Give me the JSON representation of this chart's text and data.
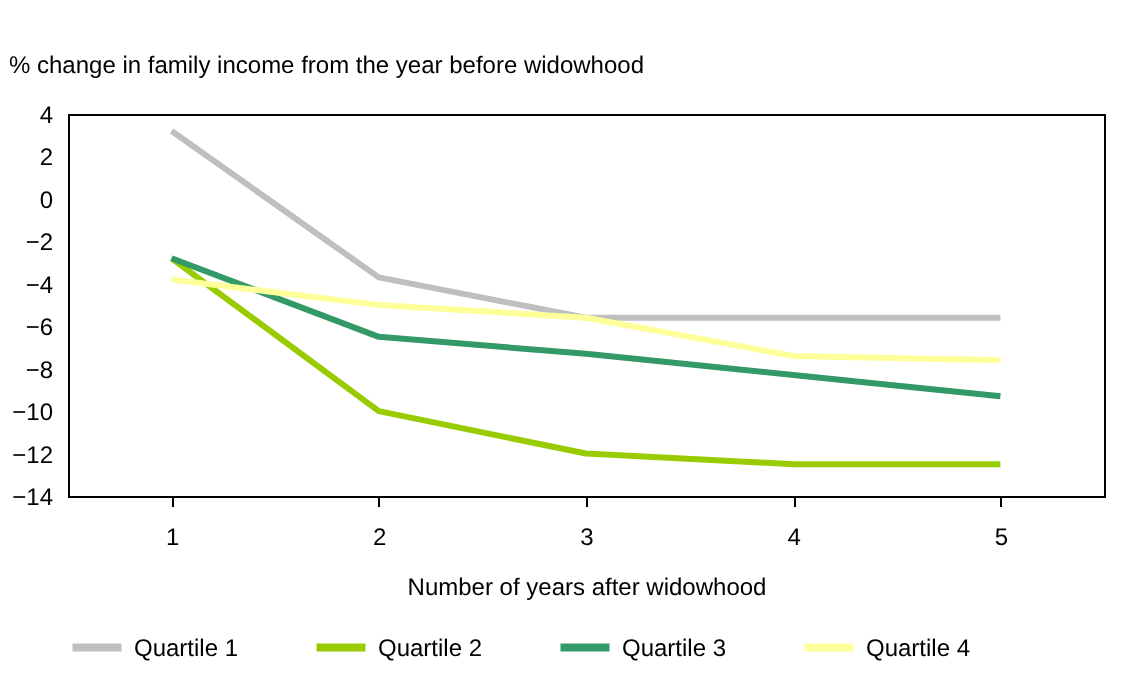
{
  "chart_data": {
    "type": "line",
    "ylabel": "% change in family income from the year before widowhood",
    "xlabel": "Number of years after widowhood",
    "categories": [
      "1",
      "2",
      "3",
      "4",
      "5"
    ],
    "series": [
      {
        "name": "Quartile 1",
        "color": "#bfbfbf",
        "values": [
          3.2,
          -3.7,
          -5.6,
          -5.6,
          -5.6
        ]
      },
      {
        "name": "Quartile 2",
        "color": "#99cc00",
        "values": [
          -2.8,
          -10,
          -12,
          -12.5,
          -12.5
        ]
      },
      {
        "name": "Quartile 3",
        "color": "#339966",
        "values": [
          -2.8,
          -6.5,
          -7.3,
          -8.3,
          -9.3
        ]
      },
      {
        "name": "Quartile 4",
        "color": "#ffff99",
        "values": [
          -3.8,
          -5,
          -5.6,
          -7.4,
          -7.6
        ]
      }
    ],
    "ylim": [
      -14,
      4
    ],
    "yticks": [
      -14,
      -12,
      -10,
      -8,
      -6,
      -4,
      -2,
      0,
      2,
      4
    ],
    "grid": false,
    "legend": "bottom",
    "marker": "none",
    "line_style": "solid"
  }
}
